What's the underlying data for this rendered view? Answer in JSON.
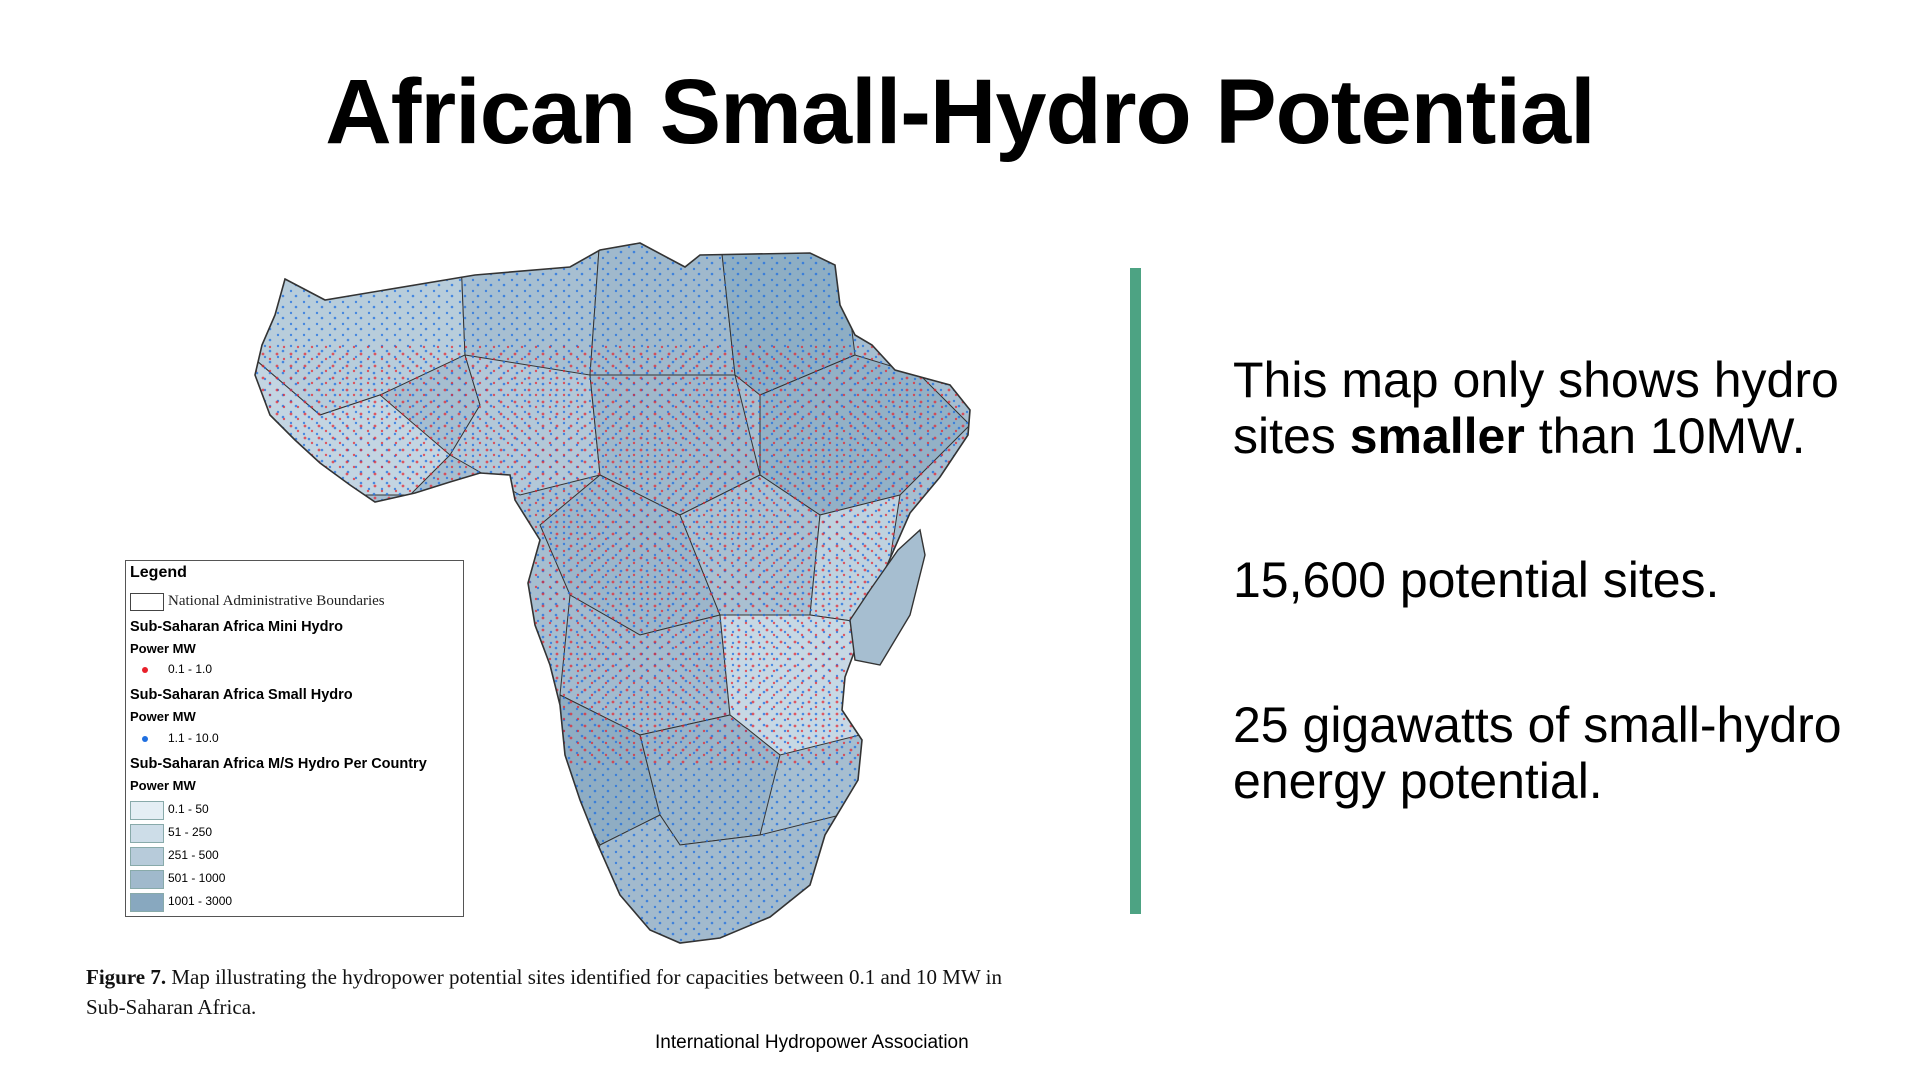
{
  "slide": {
    "title": "African Small-Hydro Potential",
    "points": {
      "p1_a": "This map only shows hydro sites ",
      "p1_bold": "smaller",
      "p1_b": " than 10MW.",
      "p2": "15,600 potential sites.",
      "p3": "25 gigawatts of small-hydro energy potential."
    },
    "caption_label": "Figure 7.",
    "caption_text": " Map illustrating the hydropower potential sites identified for capacities between 0.1 and 10 MW in Sub-Saharan Africa.",
    "credit": "International Hydropower Association",
    "accent_color": "#4da383"
  },
  "legend": {
    "title": "Legend",
    "boundaries": "National Administrative Boundaries",
    "mini_hydro": {
      "title": "Sub-Saharan Africa Mini Hydro",
      "unit": "Power MW",
      "range": "0.1 - 1.0",
      "color": "#e8202a"
    },
    "small_hydro": {
      "title": "Sub-Saharan Africa Small Hydro",
      "unit": "Power MW",
      "range": "1.1 - 10.0",
      "color": "#1f6fe0"
    },
    "ms_hydro": {
      "title": "Sub-Saharan Africa M/S Hydro Per Country",
      "unit": "Power MW",
      "classes": [
        {
          "range": "0.1 - 50",
          "color": "#e4eef4"
        },
        {
          "range": "51 - 250",
          "color": "#cddde8"
        },
        {
          "range": "251 - 500",
          "color": "#b7cbda"
        },
        {
          "range": "501 - 1000",
          "color": "#a0b9cc"
        },
        {
          "range": "1001 - 3000",
          "color": "#88a8bf"
        }
      ]
    }
  }
}
